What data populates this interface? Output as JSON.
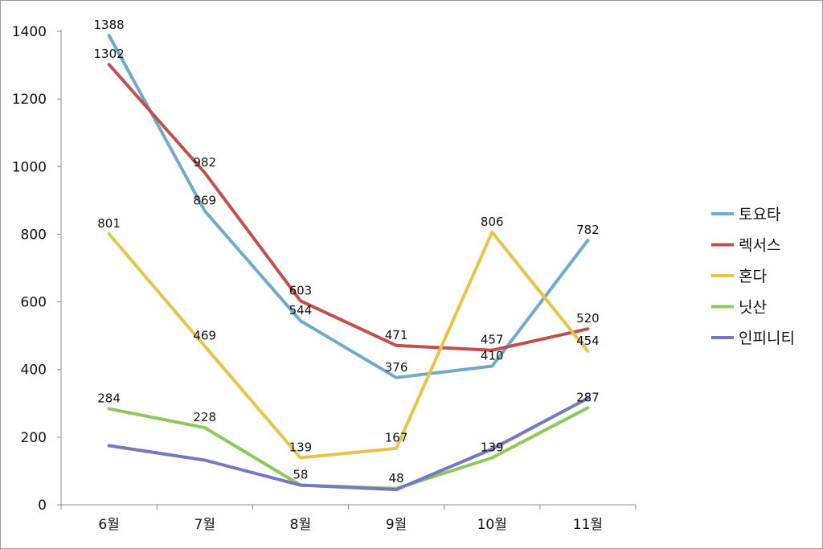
{
  "chart_data": {
    "type": "line",
    "categories": [
      "6월",
      "7월",
      "8월",
      "9월",
      "10월",
      "11월"
    ],
    "ylim": [
      0,
      1400
    ],
    "yticks": [
      0,
      200,
      400,
      600,
      800,
      1000,
      1200,
      1400
    ],
    "grid": false,
    "legend_position": "right",
    "series": [
      {
        "name": "토요타",
        "color": "#6fabc9",
        "values": [
          1388,
          869,
          544,
          376,
          410,
          782
        ],
        "labels": [
          "1388",
          "869",
          "544",
          "376",
          "410",
          "782"
        ]
      },
      {
        "name": "렉서스",
        "color": "#c0504d",
        "values": [
          1302,
          982,
          603,
          471,
          457,
          520
        ],
        "labels": [
          "1302",
          "982",
          "603",
          "471",
          "457",
          "520"
        ]
      },
      {
        "name": "혼다",
        "color": "#e8c34a",
        "values": [
          801,
          469,
          139,
          167,
          806,
          454
        ],
        "labels": [
          "801",
          "469",
          "139",
          "167",
          "806",
          "454"
        ]
      },
      {
        "name": "닛산",
        "color": "#8cc85a",
        "values": [
          284,
          228,
          58,
          48,
          139,
          287
        ],
        "labels": [
          "284",
          "228",
          "58",
          "48",
          "139",
          "287"
        ]
      },
      {
        "name": "인피니티",
        "color": "#7478c0",
        "values": [
          175,
          132,
          58,
          45,
          165,
          315
        ],
        "labels": [
          "",
          "",
          "",
          "",
          "",
          ""
        ]
      }
    ]
  }
}
